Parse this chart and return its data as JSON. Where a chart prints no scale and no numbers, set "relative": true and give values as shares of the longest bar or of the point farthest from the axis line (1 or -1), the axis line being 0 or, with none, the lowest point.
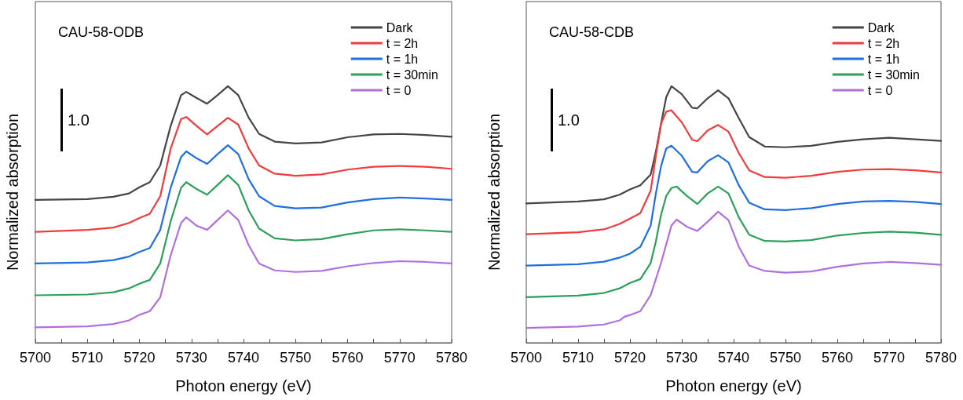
{
  "chart_data": [
    {
      "type": "line",
      "title": "CAU-58-ODB",
      "xlabel": "Photon energy (eV)",
      "ylabel": "Normalized absorption",
      "annotations": [
        "1.0"
      ],
      "relative": true,
      "legend": "top right",
      "grid": false,
      "marker": "none",
      "line_style": "solid",
      "x": [
        5700,
        5710,
        5715,
        5718,
        5720,
        5722,
        5724,
        5726,
        5728,
        5729,
        5731,
        5733,
        5735,
        5737,
        5739,
        5741,
        5743,
        5746,
        5750,
        5755,
        5760,
        5765,
        5770,
        5775,
        5780
      ],
      "xlim": [
        5700,
        5780
      ],
      "xticks": [
        5700,
        5710,
        5720,
        5730,
        5740,
        5750,
        5760,
        5770,
        5780
      ],
      "series": [
        {
          "name": "Dark",
          "color": "#454545",
          "values": [
            0.557,
            0.56,
            0.569,
            0.582,
            0.606,
            0.626,
            0.691,
            0.845,
            0.965,
            0.978,
            0.954,
            0.932,
            0.965,
            1.0,
            0.965,
            0.877,
            0.814,
            0.784,
            0.777,
            0.781,
            0.801,
            0.812,
            0.814,
            0.81,
            0.803
          ]
        },
        {
          "name": "t = 2h",
          "color": "#f03c3c",
          "values": [
            0.432,
            0.44,
            0.449,
            0.467,
            0.486,
            0.503,
            0.571,
            0.757,
            0.872,
            0.88,
            0.845,
            0.812,
            0.845,
            0.877,
            0.85,
            0.757,
            0.691,
            0.659,
            0.651,
            0.656,
            0.675,
            0.686,
            0.689,
            0.686,
            0.678
          ]
        },
        {
          "name": "t = 1h",
          "color": "#1f6fe0",
          "values": [
            0.309,
            0.313,
            0.322,
            0.336,
            0.354,
            0.369,
            0.44,
            0.604,
            0.724,
            0.746,
            0.719,
            0.697,
            0.735,
            0.77,
            0.735,
            0.637,
            0.571,
            0.533,
            0.524,
            0.527,
            0.547,
            0.56,
            0.566,
            0.562,
            0.557
          ]
        },
        {
          "name": "t = 30min",
          "color": "#2ca05a",
          "values": [
            0.185,
            0.188,
            0.197,
            0.212,
            0.23,
            0.245,
            0.309,
            0.473,
            0.604,
            0.626,
            0.599,
            0.577,
            0.615,
            0.653,
            0.615,
            0.516,
            0.445,
            0.407,
            0.399,
            0.404,
            0.423,
            0.438,
            0.442,
            0.438,
            0.432
          ]
        },
        {
          "name": "t = 0",
          "color": "#b070e0",
          "values": [
            0.06,
            0.064,
            0.073,
            0.087,
            0.109,
            0.123,
            0.177,
            0.341,
            0.467,
            0.489,
            0.456,
            0.44,
            0.478,
            0.516,
            0.478,
            0.38,
            0.309,
            0.282,
            0.276,
            0.28,
            0.298,
            0.311,
            0.318,
            0.315,
            0.309
          ]
        }
      ]
    },
    {
      "type": "line",
      "title": "CAU-58-CDB",
      "xlabel": "Photon energy (eV)",
      "ylabel": "Normalized absorption",
      "annotations": [
        "1.0"
      ],
      "relative": true,
      "legend": "top right",
      "grid": false,
      "marker": "none",
      "line_style": "solid",
      "xlim": [
        5700,
        5780
      ],
      "xticks": [
        5700,
        5710,
        5720,
        5730,
        5740,
        5750,
        5760,
        5770,
        5780
      ],
      "series": [
        {
          "name": "Dark",
          "color": "#454545",
          "x": [
            5700,
            5710,
            5715,
            5718,
            5720,
            5722,
            5724,
            5725,
            5726,
            5727,
            5728,
            5730,
            5732,
            5733,
            5735,
            5737,
            5739,
            5741,
            5743,
            5746,
            5750,
            5755,
            5760,
            5765,
            5770,
            5775,
            5780
          ],
          "values": [
            0.543,
            0.551,
            0.559,
            0.577,
            0.598,
            0.614,
            0.656,
            0.745,
            0.854,
            0.958,
            1.0,
            0.969,
            0.916,
            0.914,
            0.953,
            0.984,
            0.953,
            0.875,
            0.802,
            0.765,
            0.762,
            0.768,
            0.783,
            0.793,
            0.799,
            0.793,
            0.787
          ]
        },
        {
          "name": "t = 2h",
          "color": "#f03c3c",
          "x": [
            5700,
            5710,
            5715,
            5718,
            5720,
            5722,
            5724,
            5725,
            5726,
            5727,
            5728,
            5730,
            5732,
            5733,
            5735,
            5737,
            5739,
            5741,
            5743,
            5746,
            5750,
            5755,
            5760,
            5765,
            5770,
            5775,
            5780
          ],
          "values": [
            0.423,
            0.431,
            0.442,
            0.463,
            0.484,
            0.505,
            0.593,
            0.729,
            0.854,
            0.901,
            0.906,
            0.859,
            0.791,
            0.786,
            0.828,
            0.849,
            0.823,
            0.739,
            0.672,
            0.646,
            0.643,
            0.651,
            0.666,
            0.675,
            0.677,
            0.672,
            0.664
          ]
        },
        {
          "name": "t = 1h",
          "color": "#1f6fe0",
          "x": [
            5700,
            5710,
            5715,
            5718,
            5720,
            5722,
            5724,
            5725,
            5726,
            5727,
            5728,
            5730,
            5732,
            5733,
            5735,
            5737,
            5739,
            5741,
            5743,
            5746,
            5750,
            5755,
            5760,
            5765,
            5770,
            5775,
            5780
          ],
          "values": [
            0.301,
            0.306,
            0.316,
            0.332,
            0.347,
            0.374,
            0.457,
            0.582,
            0.689,
            0.757,
            0.768,
            0.729,
            0.666,
            0.664,
            0.708,
            0.731,
            0.703,
            0.614,
            0.546,
            0.52,
            0.517,
            0.525,
            0.541,
            0.551,
            0.553,
            0.549,
            0.541
          ]
        },
        {
          "name": "t = 30min",
          "color": "#2ca05a",
          "x": [
            5700,
            5710,
            5715,
            5718,
            5720,
            5722,
            5724,
            5725,
            5726,
            5727,
            5728,
            5729,
            5731,
            5733,
            5735,
            5737,
            5739,
            5741,
            5743,
            5746,
            5750,
            5755,
            5760,
            5765,
            5770,
            5775,
            5780
          ],
          "values": [
            0.178,
            0.184,
            0.194,
            0.212,
            0.233,
            0.248,
            0.311,
            0.395,
            0.499,
            0.572,
            0.603,
            0.609,
            0.572,
            0.541,
            0.582,
            0.609,
            0.582,
            0.489,
            0.421,
            0.397,
            0.395,
            0.4,
            0.418,
            0.428,
            0.433,
            0.429,
            0.421
          ]
        },
        {
          "name": "t = 0",
          "color": "#b070e0",
          "x": [
            5700,
            5710,
            5715,
            5718,
            5719,
            5720,
            5722,
            5724,
            5726,
            5728,
            5729,
            5731,
            5733,
            5735,
            5737,
            5739,
            5741,
            5743,
            5746,
            5750,
            5755,
            5760,
            5765,
            5770,
            5775,
            5780
          ],
          "values": [
            0.058,
            0.063,
            0.071,
            0.087,
            0.102,
            0.108,
            0.123,
            0.186,
            0.311,
            0.457,
            0.48,
            0.452,
            0.436,
            0.472,
            0.511,
            0.478,
            0.374,
            0.301,
            0.28,
            0.273,
            0.278,
            0.296,
            0.309,
            0.315,
            0.311,
            0.304
          ]
        }
      ]
    }
  ]
}
